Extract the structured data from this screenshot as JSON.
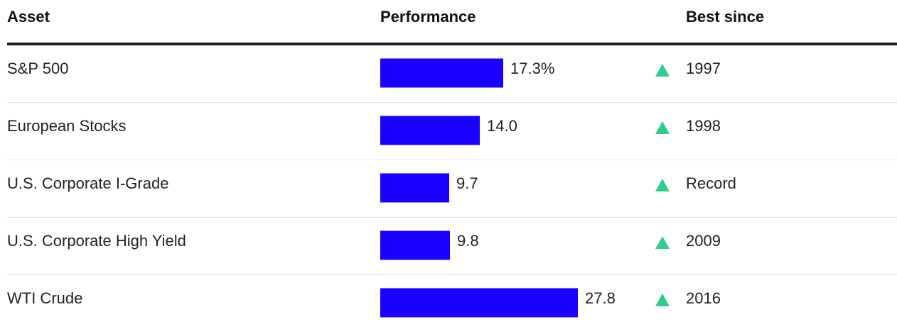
{
  "chart_data": {
    "type": "bar",
    "columns": [
      "Asset",
      "Performance",
      "Best since"
    ],
    "categories": [
      "S&P 500",
      "European Stocks",
      "U.S. Corporate I-Grade",
      "U.S. Corporate High Yield",
      "WTI Crude"
    ],
    "values": [
      17.3,
      14.0,
      9.7,
      9.8,
      27.8
    ],
    "value_labels": [
      "17.3%",
      "14.0",
      "9.7",
      "9.8",
      "27.8"
    ],
    "best_since": [
      "1997",
      "1998",
      "Record",
      "2009",
      "2016"
    ],
    "color": "#1a00ff"
  }
}
